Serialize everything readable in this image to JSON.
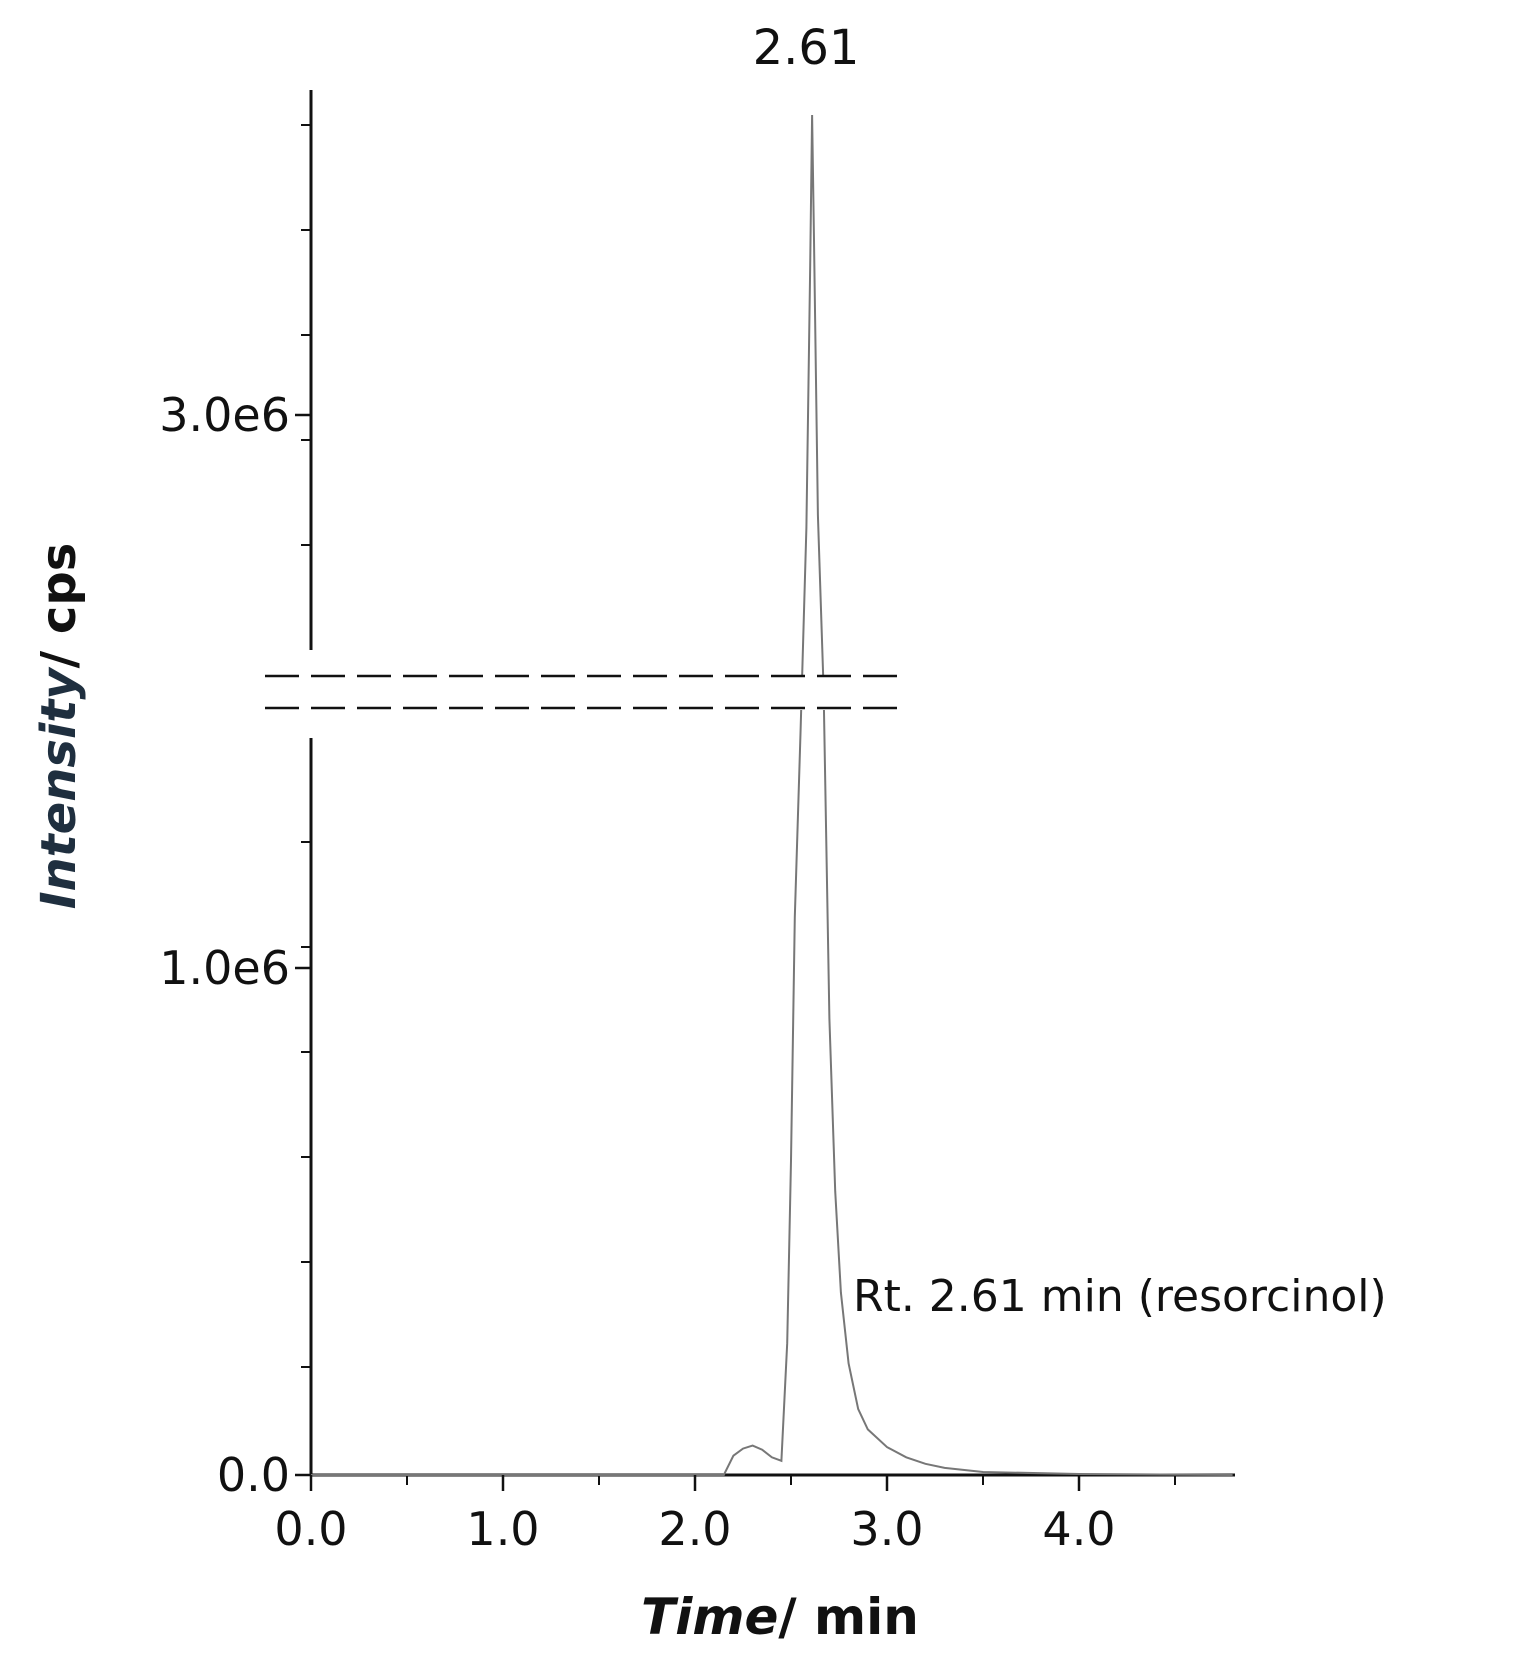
{
  "chart_data": {
    "type": "line",
    "title": "",
    "xlabel": {
      "italic": "Time",
      "plain": "/ min"
    },
    "ylabel": {
      "italic": "Intensity",
      "plain": "/ cps"
    },
    "xlim": [
      0,
      4.8
    ],
    "ylim": [
      0,
      3000000.0
    ],
    "axis_break": true,
    "grid": false,
    "x_ticks": [
      {
        "value": 0.0,
        "label": "0.0"
      },
      {
        "value": 1.0,
        "label": "1.0"
      },
      {
        "value": 2.0,
        "label": "2.0"
      },
      {
        "value": 3.0,
        "label": "3.0"
      },
      {
        "value": 4.0,
        "label": "4.0"
      }
    ],
    "y_ticks": [
      {
        "value": 0,
        "label": "0.0"
      },
      {
        "value": 1000000,
        "label": "1.0e6"
      },
      {
        "value": 3000000,
        "label": "3.0e6"
      }
    ],
    "annotations": {
      "peak_label": "2.61",
      "peak_x": 2.61,
      "compound": "Rt. 2.61 min (resorcinol)"
    },
    "series": [
      {
        "color": "#777777",
        "x": [
          0.0,
          2.15,
          2.2,
          2.25,
          2.3,
          2.35,
          2.4,
          2.45,
          2.48,
          2.5,
          2.52,
          2.55,
          2.58,
          2.6,
          2.61,
          2.62,
          2.64,
          2.67,
          2.7,
          2.73,
          2.76,
          2.8,
          2.85,
          2.9,
          3.0,
          3.1,
          3.2,
          3.3,
          3.5,
          4.0,
          4.8
        ],
        "y": [
          0,
          0,
          38000,
          52000,
          58000,
          50000,
          35000,
          28000,
          260000,
          620000,
          1100000,
          1650000,
          2550000,
          3600000,
          4200000,
          3700000,
          2600000,
          1550000,
          900000,
          560000,
          360000,
          220000,
          130000,
          90000,
          55000,
          35000,
          22000,
          14000,
          6000,
          2000,
          0
        ]
      }
    ]
  }
}
